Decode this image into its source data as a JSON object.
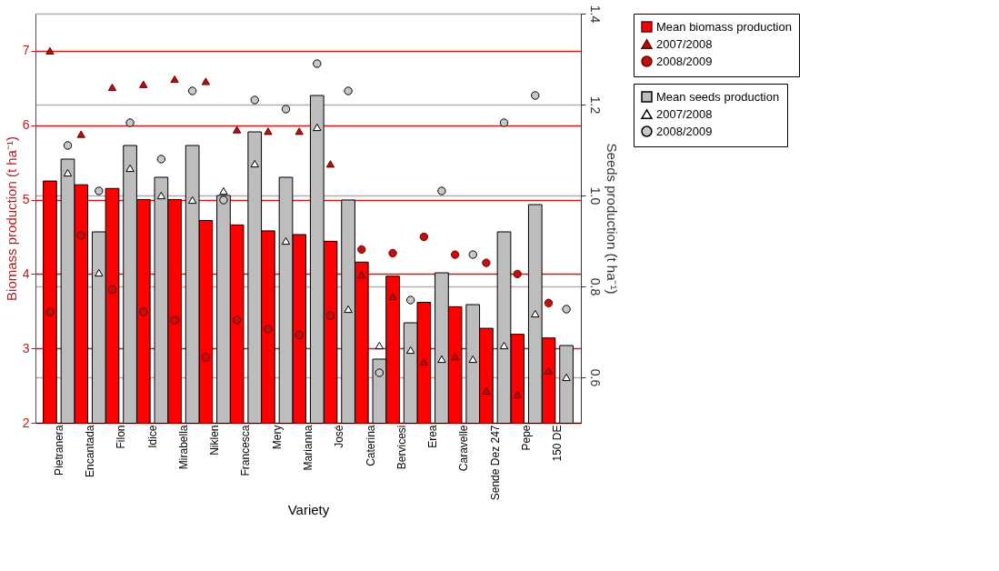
{
  "chart_data": {
    "type": "bar",
    "xlabel": "Variety",
    "ylabel": "Biomass production (t ha⁻¹)",
    "y2label": "Seeds production (t ha⁻¹)",
    "categories": [
      "Pietranera",
      "Encantada",
      "Filon",
      "Idice",
      "Mirabella",
      "Niklen",
      "Francesca",
      "Mery",
      "Marianna",
      "José",
      "Caterina",
      "Bervicesi",
      "Erea",
      "Caravelle",
      "Sende Dez 247",
      "Pepe",
      "150 DE"
    ],
    "ylim": [
      2,
      7.5
    ],
    "yticks": [
      2,
      3,
      4,
      5,
      6,
      7
    ],
    "y2lim": [
      0.5,
      1.4
    ],
    "y2ticks": [
      0.6,
      0.8,
      {
        "value": 1.0,
        "label": "1.0"
      },
      1.2,
      1.4
    ],
    "grid": "y",
    "legend": "right",
    "series": [
      {
        "name": "Mean biomass production",
        "axis": "y",
        "color": "#ff0000",
        "values": [
          5.25,
          5.2,
          5.15,
          5.0,
          5.0,
          4.72,
          4.66,
          4.58,
          4.53,
          4.44,
          4.16,
          3.97,
          3.62,
          3.56,
          3.27,
          3.19,
          3.14
        ]
      },
      {
        "name": "2007/2008",
        "type": "scatter",
        "axis": "y",
        "marker": "triangle",
        "color": "#b01010",
        "values": [
          7.0,
          5.88,
          6.51,
          6.55,
          6.62,
          6.59,
          5.94,
          5.92,
          5.92,
          5.48,
          3.99,
          3.7,
          2.82,
          2.89,
          2.43,
          2.38,
          2.7
        ]
      },
      {
        "name": "2008/2009",
        "type": "scatter",
        "axis": "y",
        "marker": "circle",
        "color": "#c01010",
        "values": [
          3.49,
          4.52,
          3.79,
          3.49,
          3.38,
          2.88,
          3.38,
          3.26,
          3.18,
          3.44,
          4.33,
          4.28,
          4.5,
          4.26,
          4.15,
          4.0,
          3.61
        ]
      },
      {
        "name": "Mean seeds production",
        "axis": "y2",
        "color": "#bdbdbd",
        "values": [
          1.08,
          0.92,
          1.11,
          1.04,
          1.11,
          1.0,
          1.14,
          1.04,
          1.22,
          0.99,
          0.64,
          0.72,
          0.83,
          0.76,
          0.92,
          0.98,
          0.67
        ]
      },
      {
        "name": "2007/2008",
        "type": "scatter",
        "axis": "y2",
        "marker": "triangle",
        "color": "#ffffff",
        "values": [
          1.05,
          0.83,
          1.06,
          1.0,
          0.99,
          1.01,
          1.07,
          0.9,
          1.15,
          0.75,
          0.67,
          0.66,
          0.64,
          0.64,
          0.67,
          0.74,
          0.6
        ]
      },
      {
        "name": "2008/2009",
        "type": "scatter",
        "axis": "y2",
        "marker": "circle",
        "color": "#c8c8c8",
        "values": [
          1.11,
          1.01,
          1.16,
          1.08,
          1.23,
          0.99,
          1.21,
          1.19,
          1.29,
          1.23,
          0.61,
          0.77,
          1.01,
          0.87,
          1.16,
          1.22,
          0.75
        ]
      }
    ]
  }
}
